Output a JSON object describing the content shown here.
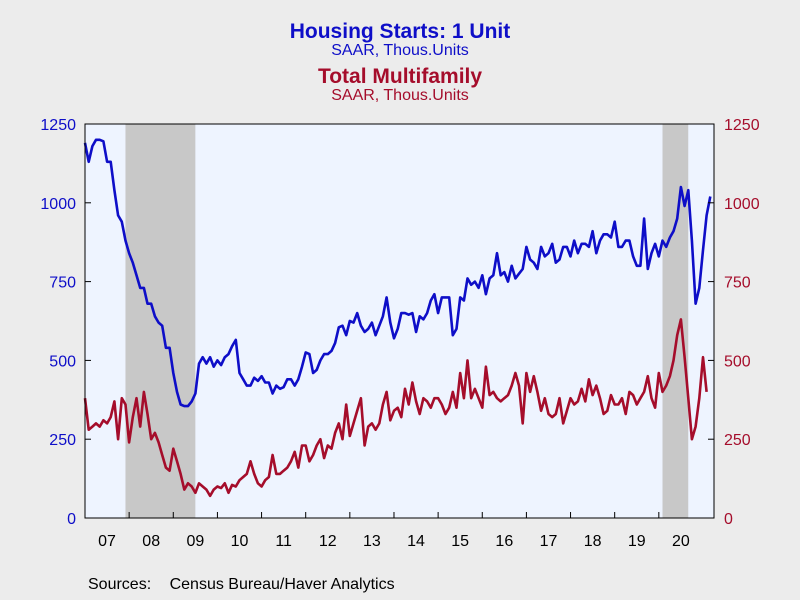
{
  "chart_data": {
    "type": "line",
    "title": "Housing Starts: 1 Unit",
    "subtitle": "SAAR, Thous.Units",
    "title2": "Total Multifamily",
    "subtitle2": "SAAR, Thous.Units",
    "x_start": "2007-01",
    "x_frequency": "monthly",
    "x_tick_labels": [
      "07",
      "08",
      "09",
      "10",
      "11",
      "12",
      "13",
      "14",
      "15",
      "16",
      "17",
      "18",
      "19",
      "20"
    ],
    "ylim": [
      0,
      1250
    ],
    "y_ticks": [
      0,
      250,
      500,
      750,
      1000,
      1250
    ],
    "y2lim": [
      0,
      1250
    ],
    "y2_ticks": [
      0,
      250,
      500,
      750,
      1000,
      1250
    ],
    "recessions": [
      {
        "start": "2007-12",
        "end": "2009-06"
      },
      {
        "start": "2020-02",
        "end": "2020-08"
      }
    ],
    "grid": false,
    "series": [
      {
        "color": "#0e0ec8",
        "axis": "left",
        "values": [
          1190,
          1130,
          1180,
          1200,
          1200,
          1195,
          1130,
          1130,
          1040,
          960,
          940,
          880,
          840,
          810,
          770,
          730,
          730,
          680,
          680,
          640,
          620,
          610,
          540,
          540,
          460,
          400,
          360,
          355,
          355,
          370,
          395,
          490,
          510,
          490,
          510,
          480,
          500,
          485,
          510,
          520,
          545,
          565,
          460,
          440,
          420,
          420,
          445,
          435,
          450,
          430,
          430,
          395,
          420,
          410,
          415,
          440,
          440,
          420,
          440,
          480,
          525,
          520,
          460,
          470,
          500,
          520,
          520,
          530,
          555,
          605,
          610,
          580,
          625,
          620,
          650,
          610,
          590,
          600,
          620,
          580,
          610,
          640,
          700,
          620,
          570,
          600,
          650,
          650,
          645,
          650,
          590,
          640,
          630,
          650,
          690,
          710,
          650,
          700,
          700,
          700,
          580,
          600,
          700,
          690,
          760,
          740,
          750,
          730,
          770,
          710,
          760,
          770,
          840,
          770,
          780,
          750,
          800,
          760,
          775,
          790,
          860,
          820,
          810,
          790,
          860,
          830,
          840,
          870,
          810,
          820,
          860,
          860,
          830,
          880,
          840,
          870,
          870,
          860,
          910,
          840,
          880,
          900,
          900,
          890,
          940,
          860,
          860,
          880,
          880,
          830,
          800,
          800,
          950,
          790,
          840,
          870,
          830,
          880,
          860,
          890,
          910,
          950,
          1050,
          990,
          1040,
          880,
          680,
          730,
          850,
          960,
          1020
        ]
      },
      {
        "color": "#a50d2b",
        "axis": "right",
        "values": [
          380,
          280,
          290,
          300,
          290,
          310,
          300,
          320,
          370,
          250,
          380,
          360,
          240,
          320,
          380,
          290,
          400,
          330,
          250,
          270,
          240,
          200,
          160,
          150,
          220,
          180,
          140,
          90,
          110,
          100,
          80,
          110,
          100,
          90,
          70,
          90,
          100,
          95,
          110,
          80,
          105,
          100,
          120,
          130,
          140,
          180,
          140,
          110,
          100,
          120,
          130,
          200,
          140,
          140,
          150,
          160,
          180,
          210,
          160,
          230,
          230,
          180,
          200,
          230,
          250,
          190,
          230,
          220,
          270,
          300,
          250,
          360,
          260,
          300,
          340,
          380,
          230,
          290,
          300,
          280,
          300,
          360,
          400,
          310,
          340,
          350,
          320,
          410,
          360,
          430,
          370,
          330,
          380,
          370,
          350,
          380,
          380,
          360,
          330,
          350,
          400,
          350,
          460,
          380,
          500,
          380,
          410,
          380,
          350,
          480,
          390,
          400,
          380,
          370,
          380,
          390,
          420,
          460,
          420,
          300,
          460,
          400,
          450,
          400,
          340,
          380,
          330,
          320,
          330,
          380,
          300,
          340,
          380,
          360,
          370,
          410,
          370,
          440,
          390,
          420,
          380,
          330,
          340,
          390,
          360,
          360,
          380,
          330,
          400,
          390,
          360,
          380,
          400,
          450,
          380,
          350,
          460,
          400,
          420,
          450,
          500,
          580,
          630,
          510,
          380,
          250,
          290,
          380,
          510,
          400
        ]
      }
    ],
    "source_label": "Sources:",
    "source_text": "Census Bureau/Haver Analytics"
  }
}
